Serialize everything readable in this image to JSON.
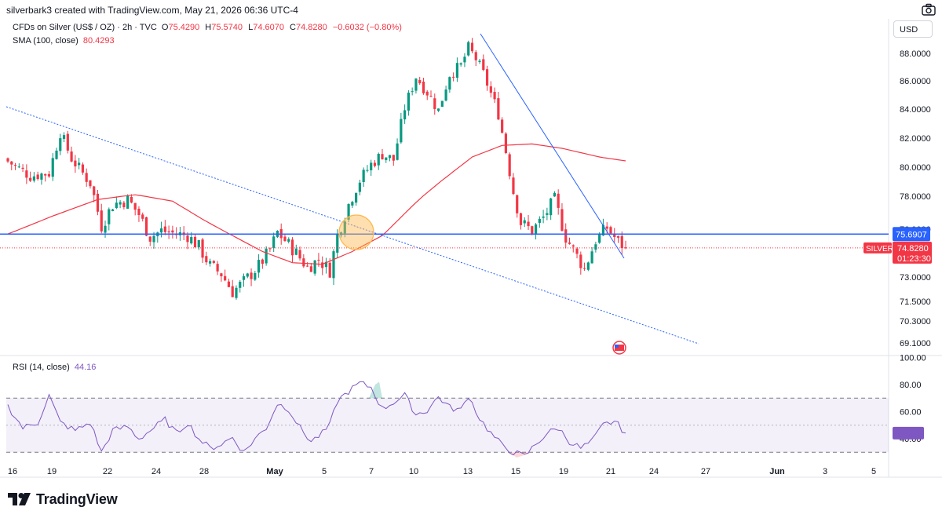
{
  "header": {
    "attribution": "silverbark3 created with TradingView.com, May 21, 2026 06:36 UTC-4"
  },
  "legend": {
    "symbol": "CFDs on Silver (US$ / OZ) · 2h · TVC",
    "open_label": "O",
    "open": "75.4290",
    "high_label": "H",
    "high": "75.5740",
    "low_label": "L",
    "low": "74.6070",
    "close_label": "C",
    "close": "74.8280",
    "change": "−0.6032 (−0.80%)",
    "sma_label": "SMA (100, close)",
    "sma_value": "80.4293"
  },
  "currency_button": "USD",
  "rsi_legend": {
    "label": "RSI (14, close)",
    "value": "44.16"
  },
  "brand": "TradingView",
  "colors": {
    "up": "#089981",
    "down": "#f23645",
    "sma": "#f23645",
    "rsi": "#7e57c2",
    "level": "#2962ff",
    "trendline": "#2962ff",
    "marker": "#ffb74d"
  },
  "chart_data": {
    "type": "candlestick",
    "price_axis_ticks": [
      "88.0000",
      "86.0000",
      "84.0000",
      "82.0000",
      "80.0000",
      "78.0000",
      "76.0000",
      "73.0000",
      "71.5000",
      "70.3000",
      "69.1000"
    ],
    "x_axis_ticks": [
      "16",
      "19",
      "22",
      "24",
      "28",
      "May",
      "5",
      "7",
      "10",
      "13",
      "15",
      "19",
      "21",
      "24",
      "27",
      "Jun",
      "3",
      "5"
    ],
    "level_label": "75.6907",
    "last_price_symbol": "SILVER",
    "last_price": "74.8280",
    "countdown": "01:23:30",
    "close_path": [
      [
        0,
        80.4
      ],
      [
        6,
        79.4
      ],
      [
        11,
        79.6
      ],
      [
        14,
        82.4
      ],
      [
        17,
        80.6
      ],
      [
        22,
        78.9
      ],
      [
        25,
        76.2
      ],
      [
        28,
        77.5
      ],
      [
        32,
        77.8
      ],
      [
        35,
        76.9
      ],
      [
        38,
        75.5
      ],
      [
        41,
        75.9
      ],
      [
        45,
        75.7
      ],
      [
        48,
        75.6
      ],
      [
        51,
        74.9
      ],
      [
        54,
        73.7
      ],
      [
        57,
        73.2
      ],
      [
        60,
        72.1
      ],
      [
        63,
        72.7
      ],
      [
        67,
        73.7
      ],
      [
        70,
        74.7
      ],
      [
        72,
        75.8
      ],
      [
        74,
        75.3
      ],
      [
        77,
        74.5
      ],
      [
        80,
        73.6
      ],
      [
        83,
        74.1
      ],
      [
        86,
        73.4
      ],
      [
        88,
        75.6
      ],
      [
        91,
        77.5
      ],
      [
        94,
        79.1
      ],
      [
        97,
        80.2
      ],
      [
        100,
        80.9
      ],
      [
        103,
        80.5
      ],
      [
        106,
        84.1
      ],
      [
        109,
        86.3
      ],
      [
        112,
        85.2
      ],
      [
        115,
        83.9
      ],
      [
        118,
        86.5
      ],
      [
        121,
        87.1
      ],
      [
        123,
        88.4
      ],
      [
        125,
        87.6
      ],
      [
        127,
        86.5
      ],
      [
        129,
        85.1
      ],
      [
        131,
        83.7
      ],
      [
        133,
        81.1
      ],
      [
        135,
        78.3
      ],
      [
        137,
        76.4
      ],
      [
        140,
        75.9
      ],
      [
        143,
        76.7
      ],
      [
        146,
        77.8
      ],
      [
        149,
        75.5
      ],
      [
        152,
        74.3
      ],
      [
        154,
        73.5
      ],
      [
        157,
        75.3
      ],
      [
        160,
        76.1
      ],
      [
        163,
        75.2
      ],
      [
        165,
        74.83
      ]
    ],
    "sma_path": [
      [
        0,
        75.7
      ],
      [
        12,
        76.8
      ],
      [
        24,
        77.8
      ],
      [
        34,
        78.1
      ],
      [
        44,
        77.7
      ],
      [
        52,
        76.6
      ],
      [
        60,
        75.6
      ],
      [
        68,
        74.6
      ],
      [
        76,
        73.9
      ],
      [
        84,
        73.8
      ],
      [
        92,
        74.6
      ],
      [
        100,
        75.6
      ],
      [
        108,
        77.4
      ],
      [
        116,
        79.1
      ],
      [
        124,
        80.7
      ],
      [
        132,
        81.5
      ],
      [
        140,
        81.6
      ],
      [
        148,
        81.3
      ],
      [
        158,
        80.7
      ],
      [
        165,
        80.43
      ]
    ],
    "rsi_ticks": [
      "100.00",
      "80.00",
      "60.00",
      "40.00"
    ],
    "rsi_bands": {
      "upper": 70,
      "middle": 50,
      "lower": 30
    },
    "rsi_path": [
      [
        0,
        64
      ],
      [
        4,
        48
      ],
      [
        8,
        52
      ],
      [
        11,
        72
      ],
      [
        14,
        52
      ],
      [
        18,
        46
      ],
      [
        22,
        52
      ],
      [
        25,
        30
      ],
      [
        28,
        46
      ],
      [
        32,
        49
      ],
      [
        35,
        40
      ],
      [
        38,
        46
      ],
      [
        42,
        54
      ],
      [
        45,
        44
      ],
      [
        48,
        52
      ],
      [
        51,
        40
      ],
      [
        54,
        33
      ],
      [
        57,
        36
      ],
      [
        60,
        41
      ],
      [
        63,
        30
      ],
      [
        66,
        40
      ],
      [
        69,
        48
      ],
      [
        72,
        66
      ],
      [
        75,
        62
      ],
      [
        78,
        48
      ],
      [
        81,
        38
      ],
      [
        84,
        44
      ],
      [
        86,
        50
      ],
      [
        88,
        68
      ],
      [
        91,
        75
      ],
      [
        94,
        81
      ],
      [
        97,
        78
      ],
      [
        100,
        62
      ],
      [
        103,
        67
      ],
      [
        106,
        72
      ],
      [
        109,
        58
      ],
      [
        112,
        61
      ],
      [
        115,
        71
      ],
      [
        118,
        63
      ],
      [
        121,
        61
      ],
      [
        123,
        72
      ],
      [
        126,
        55
      ],
      [
        129,
        44
      ],
      [
        132,
        35
      ],
      [
        135,
        30
      ],
      [
        138,
        27
      ],
      [
        141,
        36
      ],
      [
        144,
        44
      ],
      [
        147,
        48
      ],
      [
        150,
        38
      ],
      [
        153,
        33
      ],
      [
        156,
        38
      ],
      [
        159,
        50
      ],
      [
        162,
        53
      ],
      [
        165,
        44.16
      ]
    ]
  }
}
